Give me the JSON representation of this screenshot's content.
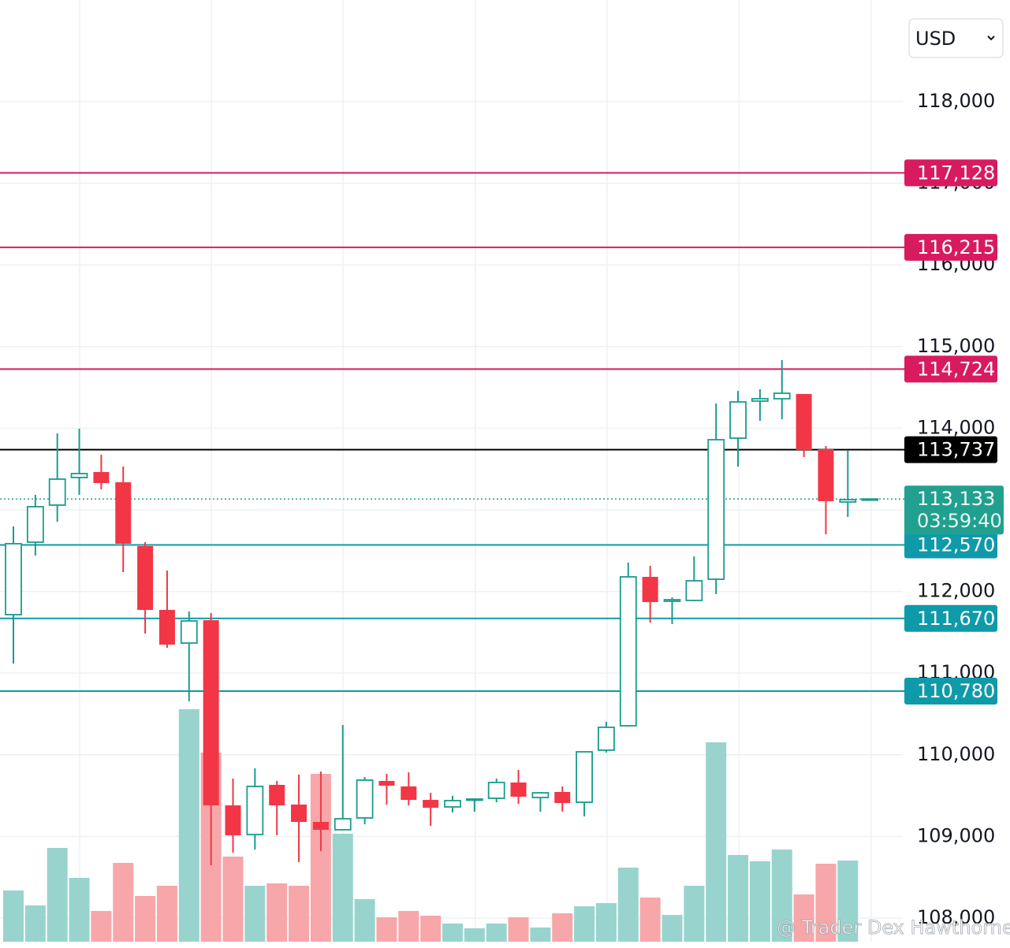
{
  "chart_data": {
    "type": "candlestick",
    "currency": "USD",
    "watermark": "@ Trader Dex Hawthorne",
    "ylim": [
      107710,
      119245
    ],
    "yticks": [
      {
        "value": 108000,
        "label": "108,000"
      },
      {
        "value": 109000,
        "label": "109,000"
      },
      {
        "value": 110000,
        "label": "110,000"
      },
      {
        "value": 111000,
        "label": "111,000"
      },
      {
        "value": 112000,
        "label": "112,000"
      },
      {
        "value": 113000,
        "label": "113,000"
      },
      {
        "value": 114000,
        "label": "114,000"
      },
      {
        "value": 115000,
        "label": "115,000"
      },
      {
        "value": 116000,
        "label": "116,000"
      },
      {
        "value": 117000,
        "label": "117,000"
      },
      {
        "value": 118000,
        "label": "118,000"
      }
    ],
    "grid": true,
    "up_color": "#1a9c8f",
    "down_color": "#f23645",
    "volume_up_color": "#98d4cd",
    "volume_down_color": "#f7a7a9",
    "open": [
      111716,
      112604,
      113058,
      113396,
      113463,
      113338,
      112556,
      111774,
      111368,
      111648,
      109380,
      109023,
      109631,
      109390,
      109177,
      109081,
      109226,
      109679,
      109612,
      109447,
      109361,
      109447,
      109467,
      109660,
      109476,
      109544,
      109418,
      110056,
      110355,
      112179,
      111880,
      111890,
      112150,
      113878,
      114332,
      114361,
      114419,
      113743,
      113096,
      113133
    ],
    "high": [
      112797,
      113183,
      113936,
      113994,
      113675,
      113531,
      112604,
      112256,
      111755,
      111735,
      109708,
      109834,
      109679,
      109756,
      109795,
      110364,
      109727,
      109766,
      109785,
      109534,
      109496,
      109467,
      109708,
      109814,
      109544,
      109612,
      110036,
      110403,
      112353,
      112314,
      111928,
      112430,
      114303,
      114457,
      114477,
      114834,
      114419,
      113782,
      113724,
      113133
    ],
    "low": [
      111118,
      112440,
      112855,
      113183,
      113251,
      112237,
      111484,
      111310,
      110654,
      108646,
      108800,
      108839,
      109013,
      108685,
      108820,
      109081,
      109148,
      109389,
      109380,
      109129,
      109293,
      109303,
      109418,
      109399,
      109303,
      109303,
      109245,
      110027,
      110345,
      111619,
      111600,
      111880,
      111967,
      113531,
      114091,
      114110,
      113647,
      112700,
      112913,
      113133
    ],
    "close": [
      112585,
      113038,
      113376,
      113444,
      113328,
      112585,
      111774,
      111349,
      111639,
      109380,
      109013,
      109612,
      109380,
      109177,
      109081,
      109216,
      109689,
      109621,
      109447,
      109351,
      109438,
      109457,
      109660,
      109486,
      109534,
      109409,
      110036,
      110336,
      112179,
      111870,
      111899,
      112131,
      113859,
      114322,
      114361,
      114428,
      113733,
      113106,
      113125,
      113133
    ],
    "volume": [
      65,
      46,
      119,
      81,
      39,
      100,
      58,
      71,
      295,
      240,
      108,
      71,
      74,
      71,
      213,
      137,
      54,
      31,
      39,
      33,
      23,
      17,
      23,
      31,
      18,
      36,
      45,
      49,
      94,
      56,
      34,
      71,
      253,
      110,
      102,
      117,
      60,
      99,
      103,
      null
    ],
    "levels": [
      {
        "value": 117128,
        "label": "117,128",
        "color": "#d81b60"
      },
      {
        "value": 116215,
        "label": "116,215",
        "color": "#d81b60"
      },
      {
        "value": 114724,
        "label": "114,724",
        "color": "#d81b60"
      },
      {
        "value": 113737,
        "label": "113,737",
        "color": "#000000"
      },
      {
        "value": 112570,
        "label": "112,570",
        "color": "#0f9aaa"
      },
      {
        "value": 111670,
        "label": "111,670",
        "color": "#0f9aaa"
      },
      {
        "value": 110780,
        "label": "110,780",
        "color": "#0f9aaa"
      }
    ],
    "current": {
      "value": 113133,
      "label": "113,133",
      "countdown": "03:59:40",
      "color": "#22a08f"
    }
  }
}
